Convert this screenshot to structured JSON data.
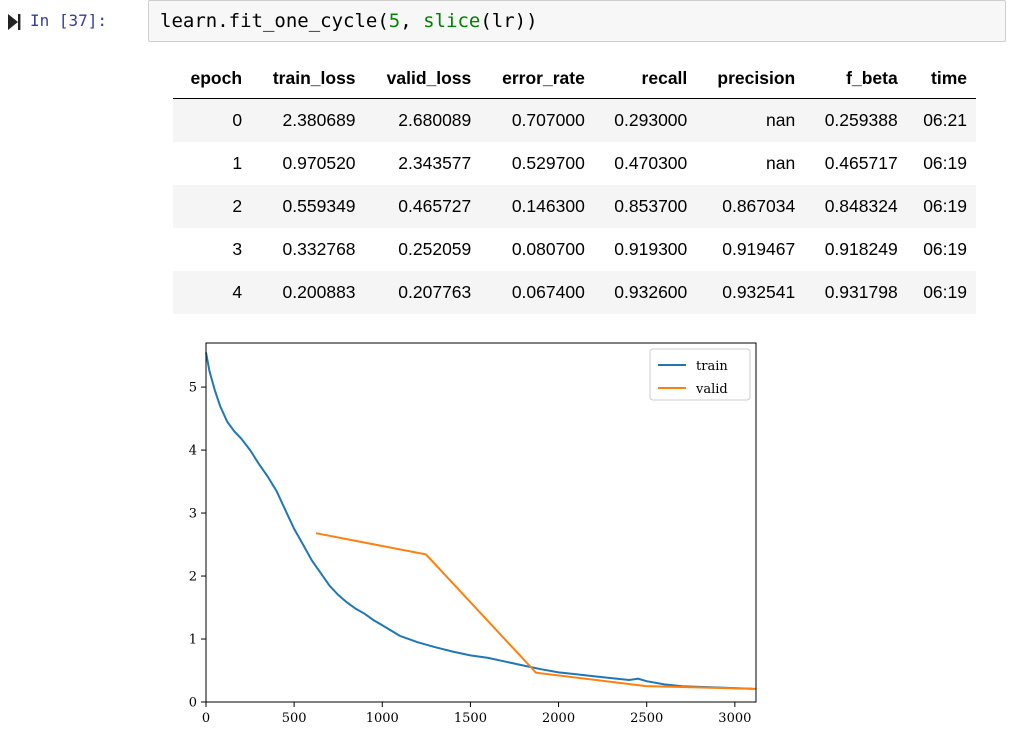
{
  "cell": {
    "prompt": "In [37]:",
    "code": {
      "fn": "learn.fit_one_cycle(",
      "arg_num": "5",
      "sep": ", ",
      "builtin": "slice",
      "rest": "(lr))"
    }
  },
  "table": {
    "columns": [
      "epoch",
      "train_loss",
      "valid_loss",
      "error_rate",
      "recall",
      "precision",
      "f_beta",
      "time"
    ],
    "rows": [
      [
        "0",
        "2.380689",
        "2.680089",
        "0.707000",
        "0.293000",
        "nan",
        "0.259388",
        "06:21"
      ],
      [
        "1",
        "0.970520",
        "2.343577",
        "0.529700",
        "0.470300",
        "nan",
        "0.465717",
        "06:19"
      ],
      [
        "2",
        "0.559349",
        "0.465727",
        "0.146300",
        "0.853700",
        "0.867034",
        "0.848324",
        "06:19"
      ],
      [
        "3",
        "0.332768",
        "0.252059",
        "0.080700",
        "0.919300",
        "0.919467",
        "0.918249",
        "06:19"
      ],
      [
        "4",
        "0.200883",
        "0.207763",
        "0.067400",
        "0.932600",
        "0.932541",
        "0.931798",
        "06:19"
      ]
    ]
  },
  "chart_data": {
    "type": "line",
    "title": "",
    "xlabel": "",
    "ylabel": "",
    "xlim": [
      0,
      3120
    ],
    "ylim": [
      0,
      5.7
    ],
    "xticks": [
      0,
      500,
      1000,
      1500,
      2000,
      2500,
      3000
    ],
    "yticks": [
      0,
      1,
      2,
      3,
      4,
      5
    ],
    "legend": "top-right",
    "grid": false,
    "series": [
      {
        "name": "train",
        "color": "#1f77b4",
        "x": [
          0,
          20,
          50,
          80,
          120,
          160,
          200,
          250,
          300,
          350,
          400,
          450,
          500,
          550,
          600,
          650,
          700,
          750,
          800,
          850,
          900,
          950,
          1000,
          1100,
          1200,
          1300,
          1400,
          1500,
          1600,
          1700,
          1800,
          1900,
          2000,
          2100,
          2200,
          2300,
          2400,
          2450,
          2500,
          2600,
          2700,
          2800,
          2900,
          3000,
          3100
        ],
        "y": [
          5.55,
          5.25,
          4.95,
          4.7,
          4.45,
          4.3,
          4.18,
          4.0,
          3.78,
          3.58,
          3.35,
          3.05,
          2.75,
          2.5,
          2.25,
          2.05,
          1.85,
          1.7,
          1.58,
          1.48,
          1.4,
          1.3,
          1.22,
          1.05,
          0.95,
          0.87,
          0.8,
          0.74,
          0.7,
          0.64,
          0.58,
          0.52,
          0.47,
          0.44,
          0.41,
          0.38,
          0.35,
          0.37,
          0.33,
          0.28,
          0.25,
          0.24,
          0.23,
          0.22,
          0.21
        ]
      },
      {
        "name": "valid",
        "color": "#ff7f0e",
        "x": [
          624,
          1248,
          1872,
          2496,
          3120
        ],
        "y": [
          2.680089,
          2.343577,
          0.465727,
          0.252059,
          0.207763
        ]
      }
    ]
  }
}
